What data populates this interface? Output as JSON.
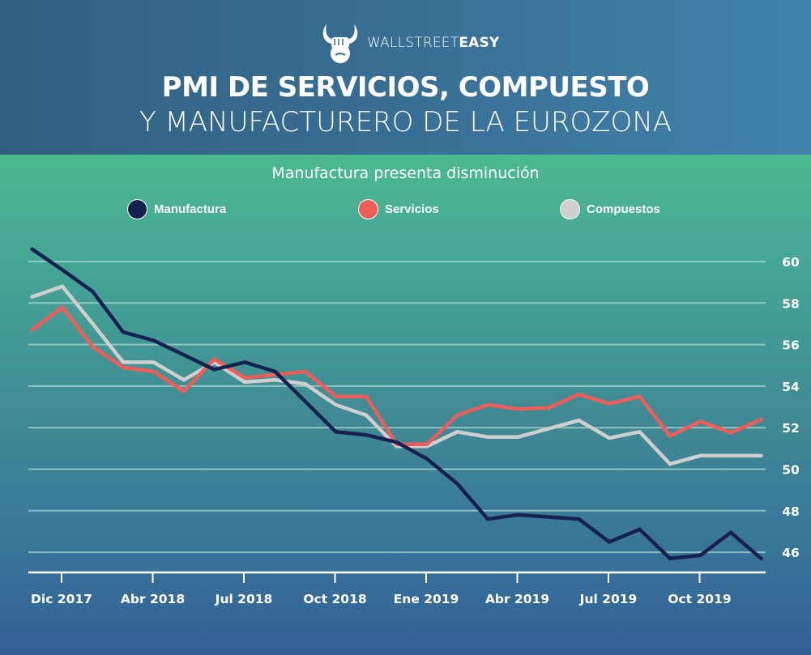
{
  "header": {
    "logo_text_light": "WALLSTREET",
    "logo_text_bold": "EASY",
    "logo_icon": "bull-fist-icon",
    "title_line1": "PMI DE SERVICIOS, COMPUESTO",
    "title_line2": "Y MANUFACTURERO DE LA EUROZONA"
  },
  "colors": {
    "manufactura": "#17214f",
    "servicios": "#ef5d5b",
    "compuestos": "#cfcfcf",
    "gridline": "#a9d6d0",
    "axis": "#ffffff"
  },
  "chart_data": {
    "type": "line",
    "title": "PMI DE SERVICIOS, COMPUESTO Y MANUFACTURERO DE LA EUROZONA",
    "subtitle": "Manufactura presenta disminución",
    "xlabel": "",
    "ylabel": "",
    "x_count": 25,
    "x_ticks": [
      {
        "index": 1,
        "label": "Dic 2017"
      },
      {
        "index": 4,
        "label": "Abr 2018"
      },
      {
        "index": 7,
        "label": "Jul 2018"
      },
      {
        "index": 10,
        "label": "Oct 2018"
      },
      {
        "index": 13,
        "label": "Ene 2019"
      },
      {
        "index": 16,
        "label": "Abr 2019"
      },
      {
        "index": 19,
        "label": "Jul 2019"
      },
      {
        "index": 22,
        "label": "Oct 2019"
      }
    ],
    "y_ticks": [
      60,
      58,
      56,
      54,
      52,
      50,
      48,
      46
    ],
    "y_axis_side": "right",
    "ylim": [
      45,
      60.6
    ],
    "grid": true,
    "legend_position": "top",
    "series": [
      {
        "name": "Manufactura",
        "color_key": "manufactura",
        "values": [
          60.6,
          59.6,
          58.55,
          56.6,
          56.2,
          55.5,
          54.8,
          55.15,
          54.7,
          53.25,
          51.8,
          51.65,
          51.3,
          50.5,
          49.3,
          47.6,
          47.8,
          47.7,
          47.6,
          46.5,
          47.1,
          45.7,
          45.85,
          46.95,
          45.7
        ]
      },
      {
        "name": "Servicios",
        "color_key": "servicios",
        "values": [
          56.7,
          57.8,
          55.9,
          54.9,
          54.7,
          53.75,
          55.3,
          54.4,
          54.55,
          54.7,
          53.5,
          53.5,
          51.2,
          51.2,
          52.6,
          53.1,
          52.9,
          52.95,
          53.6,
          53.15,
          53.5,
          51.6,
          52.3,
          51.75,
          52.4
        ]
      },
      {
        "name": "Compuestos",
        "color_key": "compuestos",
        "values": [
          58.3,
          58.8,
          57.0,
          55.15,
          55.15,
          54.3,
          55.15,
          54.2,
          54.3,
          54.1,
          53.1,
          52.6,
          51.1,
          51.1,
          51.8,
          51.55,
          51.55,
          51.95,
          52.35,
          51.5,
          51.8,
          50.25,
          50.65,
          50.65,
          50.65
        ]
      }
    ]
  }
}
